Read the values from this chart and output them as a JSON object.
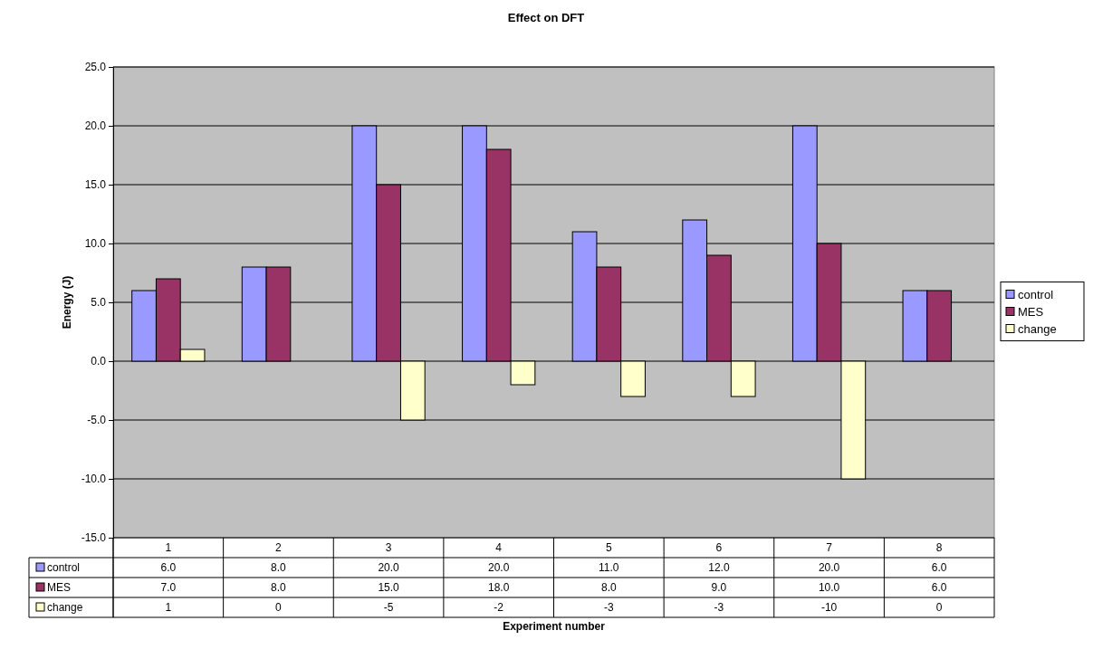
{
  "chart_data": {
    "type": "bar",
    "title": "Effect on DFT",
    "annotations": [
      "Experiment number"
    ],
    "ylabel": "Energy (J)",
    "categories": [
      "1",
      "2",
      "3",
      "4",
      "5",
      "6",
      "7",
      "8"
    ],
    "series": [
      {
        "name": "control",
        "color": "#9999ff",
        "values": [
          6,
          8,
          20,
          20,
          11,
          12,
          20,
          6
        ],
        "value_labels": [
          "6.0",
          "8.0",
          "20.0",
          "20.0",
          "11.0",
          "12.0",
          "20.0",
          "6.0"
        ]
      },
      {
        "name": "MES",
        "color": "#993366",
        "values": [
          7,
          8,
          15,
          18,
          8,
          9,
          10,
          6
        ],
        "value_labels": [
          "7.0",
          "8.0",
          "15.0",
          "18.0",
          "8.0",
          "9.0",
          "10.0",
          "6.0"
        ]
      },
      {
        "name": "change",
        "color": "#ffffcc",
        "values": [
          1,
          0,
          -5,
          -2,
          -3,
          -3,
          -10,
          0
        ],
        "value_labels": [
          "1",
          "0",
          "-5",
          "-2",
          "-3",
          "-3",
          "-10",
          "0"
        ]
      }
    ],
    "ylim": [
      -15,
      25
    ],
    "yticks": [
      {
        "value": -15,
        "label": "-15.0"
      },
      {
        "value": -10,
        "label": "-10.0"
      },
      {
        "value": -5,
        "label": "-5.0"
      },
      {
        "value": 0,
        "label": "0.0"
      },
      {
        "value": 5,
        "label": "5.0"
      },
      {
        "value": 10,
        "label": "10.0"
      },
      {
        "value": 15,
        "label": "15.0"
      },
      {
        "value": 20,
        "label": "20.0"
      },
      {
        "value": 25,
        "label": "25.0"
      }
    ],
    "grid": "y",
    "legend": "right"
  }
}
